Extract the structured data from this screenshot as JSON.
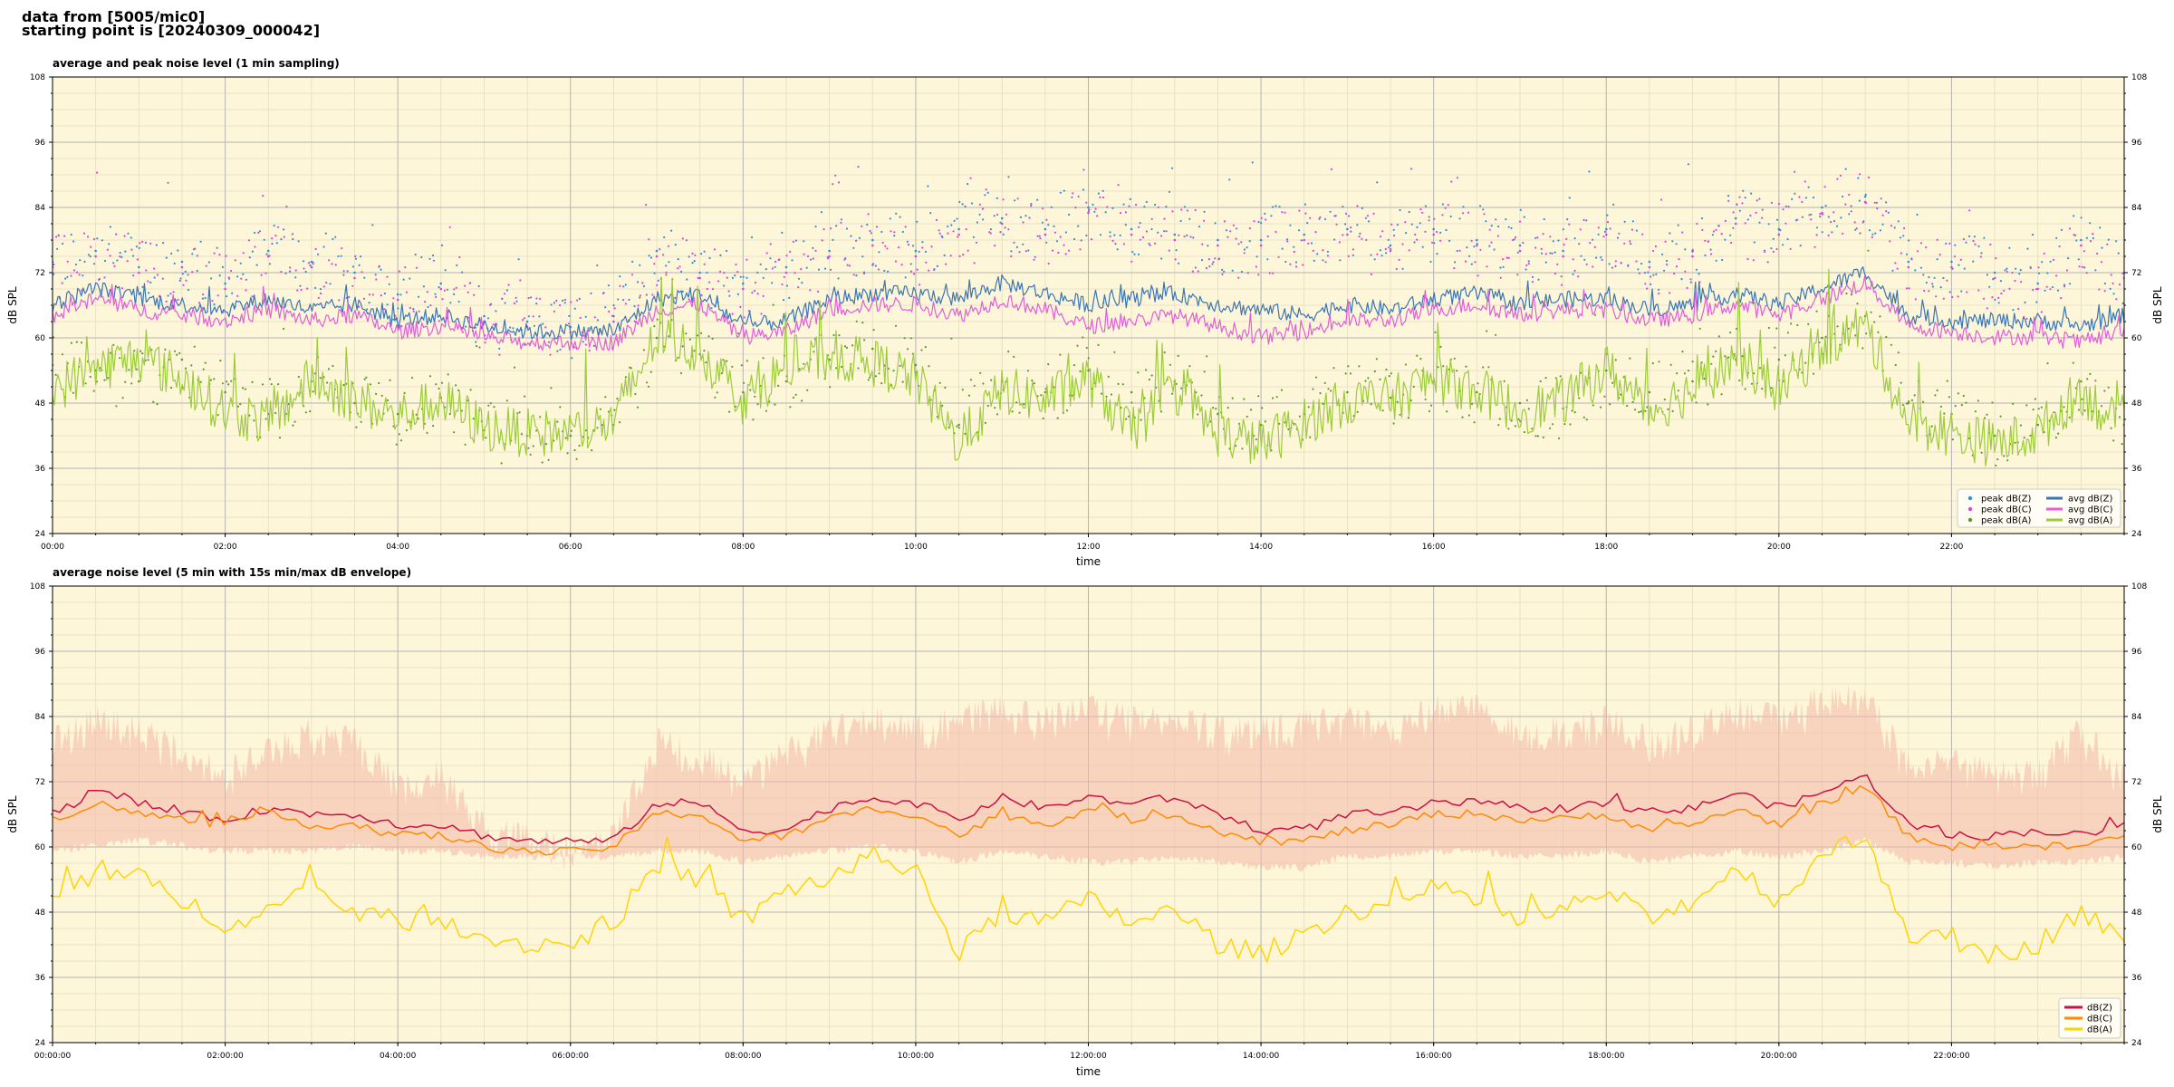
{
  "header": {
    "line1": "data from [5005/mic0]",
    "line2": "starting point is [20240309_000042]"
  },
  "colors": {
    "background": "#fdf6d9",
    "grid_major": "#b4b4b4",
    "peak_z": "#2f8fd8",
    "peak_c": "#e040e0",
    "peak_a": "#5a9a2a",
    "avg_z": "#3a75b5",
    "avg_c": "#e05ed8",
    "avg_a": "#9ccc3a",
    "db_z": "#cc1144",
    "db_c": "#ff8c00",
    "db_a": "#ffd400",
    "envelope": "#f4b8a8"
  },
  "chart_data": [
    {
      "type": "line",
      "title": "average and peak noise level (1 min sampling)",
      "xlabel": "time",
      "ylabel": "dB SPL",
      "ylim": [
        24,
        108
      ],
      "yticks": [
        24,
        36,
        48,
        60,
        72,
        84,
        96,
        108
      ],
      "xlim_hours": [
        0,
        24
      ],
      "xticks": [
        0,
        2,
        4,
        6,
        8,
        10,
        12,
        14,
        16,
        18,
        20,
        22
      ],
      "xtick_labels": [
        "00:00",
        "02:00",
        "04:00",
        "06:00",
        "08:00",
        "10:00",
        "12:00",
        "14:00",
        "16:00",
        "18:00",
        "20:00",
        "22:00"
      ],
      "grid": true,
      "legend_position": "bottom-right",
      "legend_columns": 2,
      "hours": [
        0,
        0.5,
        1,
        1.5,
        2,
        2.5,
        3,
        3.5,
        4,
        4.5,
        5,
        5.5,
        6,
        6.5,
        7,
        7.5,
        8,
        8.5,
        9,
        9.5,
        10,
        10.5,
        11,
        11.5,
        12,
        12.5,
        13,
        13.5,
        14,
        14.5,
        15,
        15.5,
        16,
        16.5,
        17,
        17.5,
        18,
        18.5,
        19,
        19.5,
        20,
        20.5,
        21,
        21.5,
        22,
        22.5,
        23,
        23.5,
        24
      ],
      "series": [
        {
          "name": "peak dB(Z)",
          "kind": "scatter",
          "values": [
            74,
            76,
            73,
            74,
            70,
            76,
            74,
            72,
            68,
            70,
            64,
            63,
            62,
            64,
            76,
            72,
            70,
            73,
            76,
            78,
            76,
            80,
            82,
            80,
            84,
            80,
            79,
            78,
            78,
            79,
            80,
            77,
            80,
            78,
            77,
            76,
            80,
            74,
            76,
            82,
            80,
            84,
            86,
            74,
            74,
            72,
            70,
            78,
            72
          ]
        },
        {
          "name": "peak dB(C)",
          "kind": "scatter",
          "values": [
            73,
            75,
            72,
            73,
            69,
            75,
            73,
            71,
            67,
            69,
            63,
            62,
            61,
            63,
            75,
            71,
            69,
            72,
            75,
            77,
            75,
            79,
            81,
            79,
            83,
            79,
            78,
            77,
            77,
            78,
            79,
            76,
            79,
            77,
            76,
            75,
            79,
            73,
            75,
            81,
            79,
            83,
            85,
            73,
            73,
            71,
            69,
            77,
            71
          ]
        },
        {
          "name": "peak dB(A)",
          "kind": "scatter",
          "values": [
            55,
            54,
            52,
            56,
            50,
            46,
            52,
            48,
            46,
            49,
            43,
            42,
            42,
            44,
            60,
            57,
            50,
            52,
            56,
            58,
            55,
            44,
            52,
            50,
            54,
            50,
            52,
            46,
            44,
            46,
            50,
            49,
            52,
            50,
            48,
            47,
            54,
            50,
            52,
            56,
            56,
            60,
            64,
            48,
            46,
            42,
            44,
            52,
            44
          ]
        },
        {
          "name": "avg dB(Z)",
          "kind": "line",
          "values": [
            66,
            69,
            67,
            66,
            65,
            67,
            65,
            66,
            63,
            64,
            62,
            61,
            61,
            61,
            67,
            68,
            62,
            63,
            67,
            68,
            68,
            67,
            70,
            68,
            66,
            67,
            68,
            66,
            65,
            64,
            66,
            65,
            67,
            68,
            66,
            67,
            67,
            65,
            66,
            68,
            66,
            69,
            72,
            64,
            63,
            63,
            63,
            62,
            64
          ]
        },
        {
          "name": "avg dB(C)",
          "kind": "line",
          "values": [
            64,
            67,
            65,
            64,
            63,
            65,
            63,
            64,
            61,
            62,
            60,
            59,
            59,
            59,
            65,
            66,
            60,
            61,
            65,
            66,
            66,
            64,
            67,
            65,
            62,
            63,
            64,
            62,
            60,
            61,
            63,
            63,
            65,
            66,
            64,
            65,
            65,
            63,
            64,
            66,
            64,
            67,
            70,
            62,
            61,
            60,
            60,
            59,
            61
          ]
        },
        {
          "name": "avg dB(A)",
          "kind": "line",
          "values": [
            50,
            54,
            56,
            52,
            46,
            44,
            52,
            48,
            45,
            48,
            43,
            42,
            42,
            44,
            60,
            57,
            48,
            54,
            56,
            55,
            52,
            40,
            50,
            48,
            52,
            42,
            50,
            42,
            40,
            44,
            48,
            48,
            52,
            50,
            46,
            48,
            54,
            46,
            50,
            56,
            50,
            58,
            62,
            44,
            42,
            40,
            42,
            50,
            42
          ]
        }
      ]
    },
    {
      "type": "line",
      "title": "average noise level (5 min with 15s min/max dB envelope)",
      "xlabel": "time",
      "ylabel": "dB SPL",
      "ylim": [
        24,
        108
      ],
      "yticks": [
        24,
        36,
        48,
        60,
        72,
        84,
        96,
        108
      ],
      "xlim_hours": [
        0,
        24
      ],
      "xticks": [
        0,
        2,
        4,
        6,
        8,
        10,
        12,
        14,
        16,
        18,
        20,
        22
      ],
      "xtick_labels": [
        "00:00:00",
        "02:00:00",
        "04:00:00",
        "06:00:00",
        "08:00:00",
        "10:00:00",
        "12:00:00",
        "14:00:00",
        "16:00:00",
        "18:00:00",
        "20:00:00",
        "22:00:00"
      ],
      "grid": true,
      "legend_position": "bottom-right",
      "hours": [
        0,
        0.5,
        1,
        1.5,
        2,
        2.5,
        3,
        3.5,
        4,
        4.5,
        5,
        5.5,
        6,
        6.5,
        7,
        7.5,
        8,
        8.5,
        9,
        9.5,
        10,
        10.5,
        11,
        11.5,
        12,
        12.5,
        13,
        13.5,
        14,
        14.5,
        15,
        15.5,
        16,
        16.5,
        17,
        17.5,
        18,
        18.5,
        19,
        19.5,
        20,
        20.5,
        21,
        21.5,
        22,
        22.5,
        23,
        23.5,
        24
      ],
      "envelope": {
        "min": [
          60,
          61,
          62,
          61,
          60,
          60,
          60,
          61,
          60,
          60,
          59,
          59,
          59,
          59,
          60,
          60,
          58,
          59,
          60,
          61,
          60,
          58,
          60,
          59,
          58,
          58,
          59,
          58,
          57,
          57,
          59,
          59,
          60,
          60,
          59,
          59,
          60,
          58,
          59,
          60,
          59,
          60,
          62,
          58,
          58,
          57,
          58,
          58,
          59
        ],
        "max": [
          82,
          86,
          84,
          80,
          76,
          80,
          84,
          82,
          74,
          76,
          66,
          64,
          62,
          64,
          82,
          80,
          74,
          80,
          84,
          86,
          84,
          86,
          88,
          86,
          88,
          86,
          86,
          84,
          84,
          85,
          86,
          84,
          88,
          88,
          84,
          84,
          86,
          82,
          84,
          88,
          86,
          90,
          90,
          78,
          78,
          76,
          76,
          84,
          76
        ]
      },
      "series": [
        {
          "name": "dB(Z)",
          "kind": "line",
          "values": [
            66,
            70,
            68,
            66,
            65,
            67,
            66,
            66,
            64,
            64,
            62,
            61,
            61,
            61,
            68,
            68,
            63,
            63,
            67,
            69,
            68,
            65,
            69,
            67,
            69,
            68,
            69,
            66,
            63,
            63,
            66,
            66,
            68,
            68,
            67,
            67,
            68,
            66,
            67,
            70,
            67,
            70,
            73,
            64,
            62,
            62,
            63,
            62,
            64
          ]
        },
        {
          "name": "dB(C)",
          "kind": "line",
          "values": [
            65,
            68,
            66,
            65,
            64,
            66,
            64,
            64,
            62,
            62,
            60,
            59,
            59,
            60,
            66,
            66,
            61,
            62,
            65,
            67,
            66,
            62,
            66,
            64,
            67,
            65,
            66,
            63,
            61,
            61,
            63,
            64,
            66,
            66,
            65,
            65,
            66,
            63,
            64,
            67,
            64,
            68,
            71,
            62,
            60,
            60,
            60,
            60,
            62
          ]
        },
        {
          "name": "dB(A)",
          "kind": "line",
          "values": [
            50,
            55,
            54,
            50,
            46,
            48,
            52,
            48,
            46,
            47,
            43,
            42,
            42,
            46,
            56,
            54,
            46,
            52,
            54,
            58,
            56,
            40,
            48,
            46,
            50,
            46,
            48,
            42,
            40,
            44,
            48,
            49,
            52,
            50,
            46,
            48,
            52,
            46,
            50,
            56,
            50,
            58,
            62,
            44,
            42,
            40,
            42,
            48,
            42
          ]
        }
      ]
    }
  ]
}
